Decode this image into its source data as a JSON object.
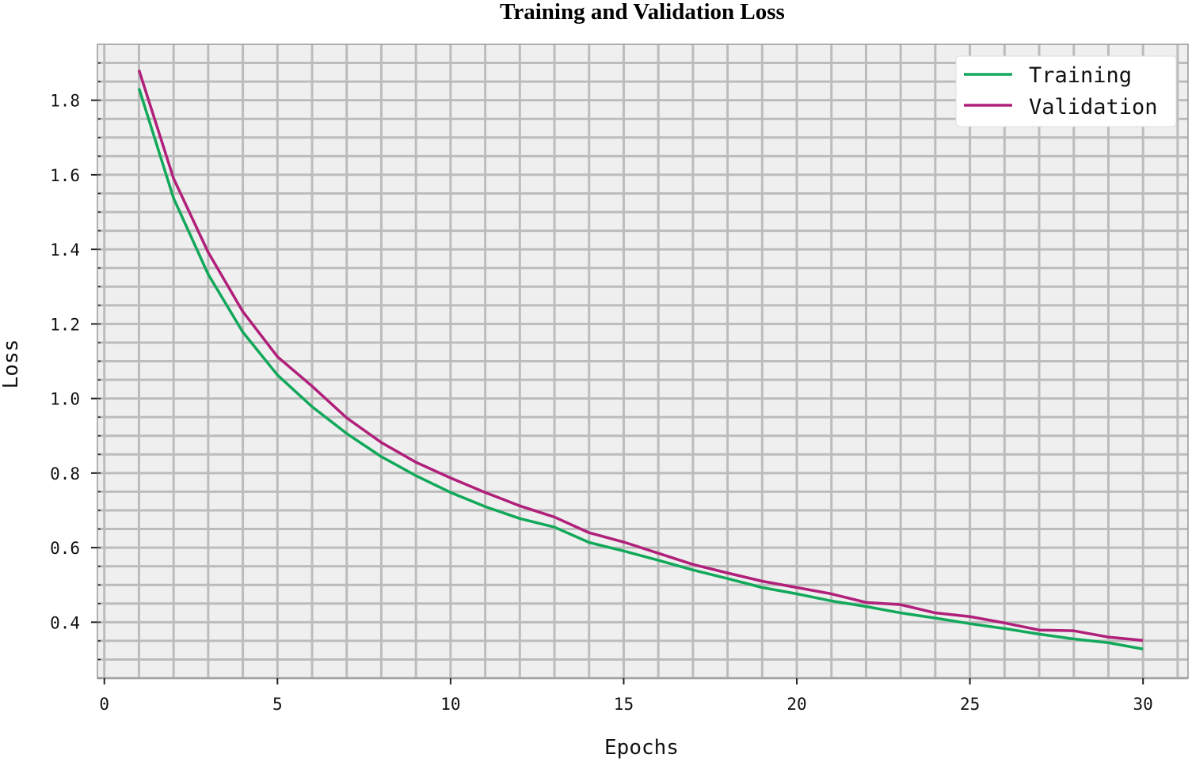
{
  "chart_data": {
    "type": "line",
    "title": "Training and Validation Loss",
    "xlabel": "Epochs",
    "ylabel": "Loss",
    "xlim": [
      -0.2,
      31.3
    ],
    "ylim": [
      0.25,
      1.95
    ],
    "xticks": [
      0,
      5,
      10,
      15,
      20,
      25,
      30
    ],
    "yticks": [
      0.4,
      0.6,
      0.8,
      1.0,
      1.2,
      1.4,
      1.6,
      1.8
    ],
    "grid": true,
    "legend_position": "top-right",
    "x": [
      1,
      2,
      3,
      4,
      5,
      6,
      7,
      8,
      9,
      10,
      11,
      12,
      13,
      14,
      15,
      16,
      17,
      18,
      19,
      20,
      21,
      22,
      23,
      24,
      25,
      26,
      27,
      28,
      29,
      30
    ],
    "series": [
      {
        "name": "Training",
        "color": "#12a85a",
        "values": [
          1.832,
          1.537,
          1.333,
          1.178,
          1.063,
          0.978,
          0.906,
          0.844,
          0.793,
          0.748,
          0.71,
          0.678,
          0.655,
          0.614,
          0.591,
          0.566,
          0.54,
          0.517,
          0.493,
          0.476,
          0.457,
          0.442,
          0.425,
          0.411,
          0.396,
          0.383,
          0.368,
          0.355,
          0.345,
          0.328
        ]
      },
      {
        "name": "Validation",
        "color": "#b0207a",
        "values": [
          1.881,
          1.59,
          1.392,
          1.233,
          1.112,
          1.033,
          0.948,
          0.882,
          0.829,
          0.787,
          0.748,
          0.712,
          0.682,
          0.64,
          0.615,
          0.585,
          0.555,
          0.532,
          0.51,
          0.493,
          0.476,
          0.453,
          0.447,
          0.425,
          0.415,
          0.398,
          0.379,
          0.377,
          0.36,
          0.351
        ]
      }
    ]
  }
}
